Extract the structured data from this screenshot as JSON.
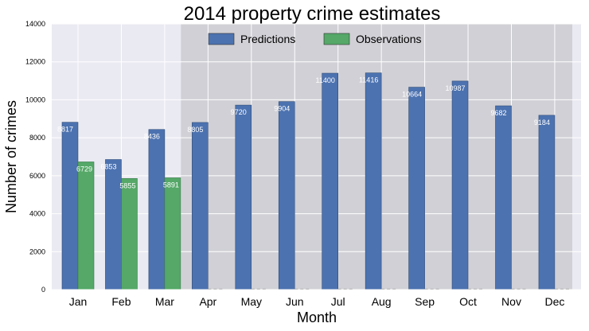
{
  "chart_data": {
    "type": "bar",
    "title": "2014 property crime estimates",
    "xlabel": "Month",
    "ylabel": "Number of crimes",
    "ylim": [
      0,
      14000
    ],
    "yticks": [
      0,
      2000,
      4000,
      6000,
      8000,
      10000,
      12000,
      14000
    ],
    "grid": true,
    "legend_position": "top-center",
    "categories": [
      "Jan",
      "Feb",
      "Mar",
      "Apr",
      "May",
      "Jun",
      "Jul",
      "Aug",
      "Sep",
      "Oct",
      "Nov",
      "Dec"
    ],
    "series": [
      {
        "name": "Predictions",
        "color": "#4c72b0",
        "values": [
          8817,
          6853,
          8436,
          8805,
          9720,
          9904,
          11400,
          11416,
          10664,
          10987,
          9682,
          9184
        ],
        "labels": [
          "8817",
          "6853",
          "8436",
          "8805",
          "9720",
          "9904",
          "11400",
          "11416",
          "10664",
          "10987",
          "9682",
          "9184"
        ]
      },
      {
        "name": "Observations",
        "color": "#55a868",
        "values": [
          6729,
          5855,
          5891,
          0,
          0,
          0,
          0,
          0,
          0,
          0,
          0,
          0
        ],
        "labels": [
          "6729",
          "5855",
          "5891"
        ]
      }
    ],
    "forecast_region": {
      "start_category": "Apr",
      "end_category": "Dec",
      "shade_color": "#d0d0d6"
    },
    "background_color": "#eaeaf2",
    "grid_color": "#ffffff"
  }
}
